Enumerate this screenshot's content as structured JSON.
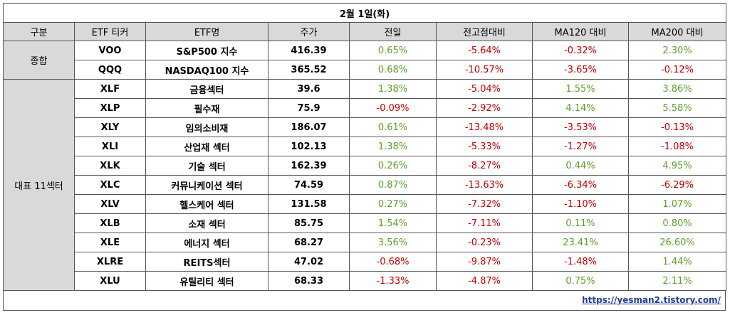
{
  "title": "2월 1일(화)",
  "headers": [
    "구분",
    "ETF 티커",
    "ETF명",
    "주가",
    "전일",
    "전고점대비",
    "MA120 대비",
    "MA200 대비"
  ],
  "groups": {
    "composite": "종합",
    "sectors": "대표 11섹터"
  },
  "rows": [
    {
      "ticker": "VOO",
      "name": "S&P500 지수",
      "price": "416.39",
      "prev": "0.65%",
      "peak": "-5.64%",
      "ma120": "-0.32%",
      "ma200": "2.30%"
    },
    {
      "ticker": "QQQ",
      "name": "NASDAQ100 지수",
      "price": "365.52",
      "prev": "0.68%",
      "peak": "-10.57%",
      "ma120": "-3.65%",
      "ma200": "-0.12%"
    },
    {
      "ticker": "XLF",
      "name": "금융섹터",
      "price": "39.6",
      "prev": "1.38%",
      "peak": "-5.04%",
      "ma120": "1.55%",
      "ma200": "3.86%"
    },
    {
      "ticker": "XLP",
      "name": "필수재",
      "price": "75.9",
      "prev": "-0.09%",
      "peak": "-2.92%",
      "ma120": "4.14%",
      "ma200": "5.58%"
    },
    {
      "ticker": "XLY",
      "name": "임의소비재",
      "price": "186.07",
      "prev": "0.61%",
      "peak": "-13.48%",
      "ma120": "-3.53%",
      "ma200": "-0.13%"
    },
    {
      "ticker": "XLI",
      "name": "산업재 섹터",
      "price": "102.13",
      "prev": "1.38%",
      "peak": "-5.33%",
      "ma120": "-1.27%",
      "ma200": "-1.08%"
    },
    {
      "ticker": "XLK",
      "name": "기술 섹터",
      "price": "162.39",
      "prev": "0.26%",
      "peak": "-8.27%",
      "ma120": "0.44%",
      "ma200": "4.95%"
    },
    {
      "ticker": "XLC",
      "name": "커뮤니케이션 섹터",
      "price": "74.59",
      "prev": "0.87%",
      "peak": "-13.63%",
      "ma120": "-6.34%",
      "ma200": "-6.29%"
    },
    {
      "ticker": "XLV",
      "name": "헬스케어 섹터",
      "price": "131.58",
      "prev": "0.27%",
      "peak": "-7.32%",
      "ma120": "-1.10%",
      "ma200": "1.07%"
    },
    {
      "ticker": "XLB",
      "name": "소재 섹터",
      "price": "85.75",
      "prev": "1.54%",
      "peak": "-7.11%",
      "ma120": "0.11%",
      "ma200": "0.80%"
    },
    {
      "ticker": "XLE",
      "name": "에너지 섹터",
      "price": "68.27",
      "prev": "3.56%",
      "peak": "-0.23%",
      "ma120": "23.41%",
      "ma200": "26.60%"
    },
    {
      "ticker": "XLRE",
      "name": "REITS섹터",
      "price": "47.02",
      "prev": "-0.68%",
      "peak": "-9.87%",
      "ma120": "-1.48%",
      "ma200": "1.44%"
    },
    {
      "ticker": "XLU",
      "name": "유틸리티 섹터",
      "price": "68.33",
      "prev": "-1.33%",
      "peak": "-4.87%",
      "ma120": "0.75%",
      "ma200": "2.11%"
    }
  ],
  "colors": {
    "positive": "#5aa02c",
    "negative": "#c00000",
    "header_bg": "#d9d9d9"
  },
  "footer_link": "https://yesman2.tistory.com/"
}
